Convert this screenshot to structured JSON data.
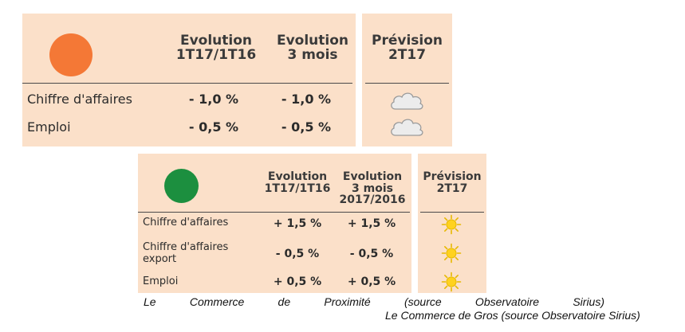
{
  "colors": {
    "panel_bg": "#fbe0c9",
    "orange_indicator": "#f47836",
    "green_indicator": "#1c8f3f"
  },
  "top_table": {
    "indicator_icon": "orange-circle-icon",
    "col1_line1": "Evolution",
    "col1_line2": "1T17/1T16",
    "col2_line1": "Evolution",
    "col2_line2": "3 mois",
    "forecast_line1": "Prévision",
    "forecast_line2": "2T17",
    "rows": [
      {
        "label": "Chiffre d'affaires",
        "v1": "- 1,0 %",
        "v2": "- 1,0 %",
        "forecast_icon": "cloud-icon"
      },
      {
        "label": "Emploi",
        "v1": "- 0,5 %",
        "v2": "- 0,5 %",
        "forecast_icon": "cloud-icon"
      }
    ]
  },
  "bottom_table": {
    "indicator_icon": "green-circle-icon",
    "col1_line1": "Evolution",
    "col1_line2": "1T17/1T16",
    "col2_line1": "Evolution",
    "col2_line2": "3 mois",
    "col2_line3": "2017/2016",
    "forecast_line1": "Prévision",
    "forecast_line2": "2T17",
    "rows": [
      {
        "label_line1": "Chiffre d'affaires",
        "v1": "+ 1,5 %",
        "v2": "+ 1,5 %",
        "forecast_icon": "sun-icon"
      },
      {
        "label_line1": "Chiffre d'affaires",
        "label_line2": "export",
        "v1": "- 0,5 %",
        "v2": "- 0,5 %",
        "forecast_icon": "sun-icon"
      },
      {
        "label_line1": "Emploi",
        "v1": "+ 0,5 %",
        "v2": "+ 0,5 %",
        "forecast_icon": "sun-icon"
      }
    ]
  },
  "captions": {
    "caption_1": "Le Commerce de Proximité (source Observatoire Sirius)",
    "caption_2": "Le Commerce de Gros (source Observatoire Sirius)"
  }
}
